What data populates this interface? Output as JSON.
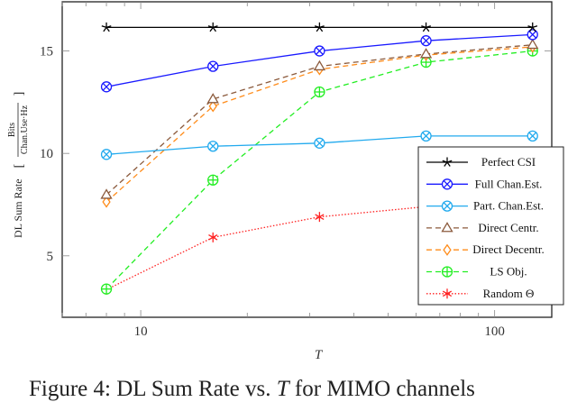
{
  "chart_data": {
    "type": "line",
    "xscale": "log",
    "xlabel": "T",
    "ylabel": "DL Sum Rate",
    "ylabel_unit_numerator": "Bits",
    "ylabel_unit_denominator": "Chan.Use·Hz",
    "xlim": [
      6,
      145
    ],
    "ylim": [
      2,
      17.4
    ],
    "xticks": [
      10,
      100
    ],
    "xtick_labels": [
      "10",
      "100"
    ],
    "yticks": [
      5,
      10,
      15
    ],
    "ytick_labels": [
      "5",
      "10",
      "15"
    ],
    "grid": false,
    "legend_position": "bottom-right",
    "x": [
      8,
      16,
      32,
      64,
      128
    ],
    "series": [
      {
        "name": "Perfect CSI",
        "color": "#000000",
        "dash": "solid",
        "marker": "star",
        "values": [
          16.15,
          16.15,
          16.15,
          16.15,
          16.15
        ]
      },
      {
        "name": "Full Chan.Est.",
        "color": "#1a1aff",
        "dash": "solid",
        "marker": "otimes",
        "values": [
          13.25,
          14.25,
          15.0,
          15.5,
          15.8
        ]
      },
      {
        "name": "Part. Chan.Est.",
        "color": "#22aaee",
        "dash": "solid",
        "marker": "otimes",
        "values": [
          9.95,
          10.35,
          10.5,
          10.85,
          10.85
        ]
      },
      {
        "name": "Direct Centr.",
        "color": "#8b5a3c",
        "dash": "dashed",
        "marker": "triangle",
        "values": [
          7.98,
          12.65,
          14.25,
          14.85,
          15.3
        ]
      },
      {
        "name": "Direct Decentr.",
        "color": "#ff8c1a",
        "dash": "dashed",
        "marker": "diamond",
        "values": [
          7.63,
          12.3,
          14.1,
          14.8,
          15.2
        ]
      },
      {
        "name": "LS Obj.",
        "color": "#22ee22",
        "dash": "dashed",
        "marker": "oplus",
        "values": [
          3.38,
          8.7,
          13.0,
          14.45,
          15.0
        ]
      },
      {
        "name": "Random Θ",
        "color": "#ff2222",
        "dash": "dotted",
        "marker": "asterisk",
        "values": [
          3.35,
          5.9,
          6.9,
          7.4,
          7.6
        ]
      }
    ]
  },
  "caption": {
    "prefix": "Figure 4: DL Sum Rate vs. ",
    "var": "T",
    "suffix": " for MIMO channels"
  }
}
